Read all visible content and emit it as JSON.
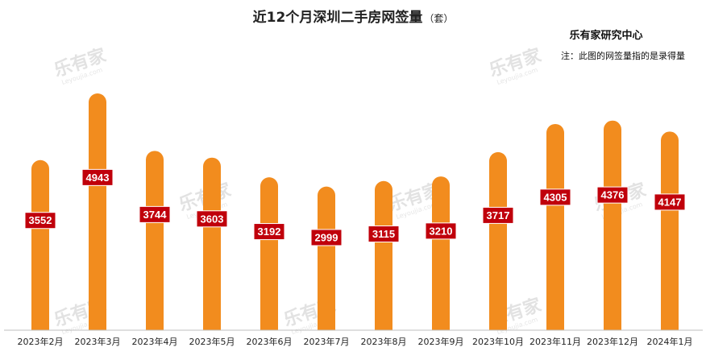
{
  "header": {
    "title": "近12个月深圳二手房网签量",
    "unit": "（套）",
    "source": "乐有家研究中心",
    "note": "注：此图的网签量指的是录得量"
  },
  "watermark": {
    "brand": "乐有家",
    "site": "Leyoujia.com"
  },
  "colors": {
    "bar": "#f28c1e",
    "label_bg": "#c0000b",
    "label_border": "#ffffff",
    "axis": "#bfbfbf"
  },
  "chart_data": {
    "type": "bar",
    "title": "近12个月深圳二手房网签量",
    "ylabel": "套",
    "categories": [
      "2023年2月",
      "2023年3月",
      "2023年4月",
      "2023年5月",
      "2023年6月",
      "2023年7月",
      "2023年8月",
      "2023年9月",
      "2023年10月",
      "2023年11月",
      "2023年12月",
      "2024年1月"
    ],
    "values": [
      3552,
      4943,
      3744,
      3603,
      3192,
      2999,
      3115,
      3210,
      3717,
      4305,
      4376,
      4147
    ],
    "legend": "none",
    "grid": false
  }
}
